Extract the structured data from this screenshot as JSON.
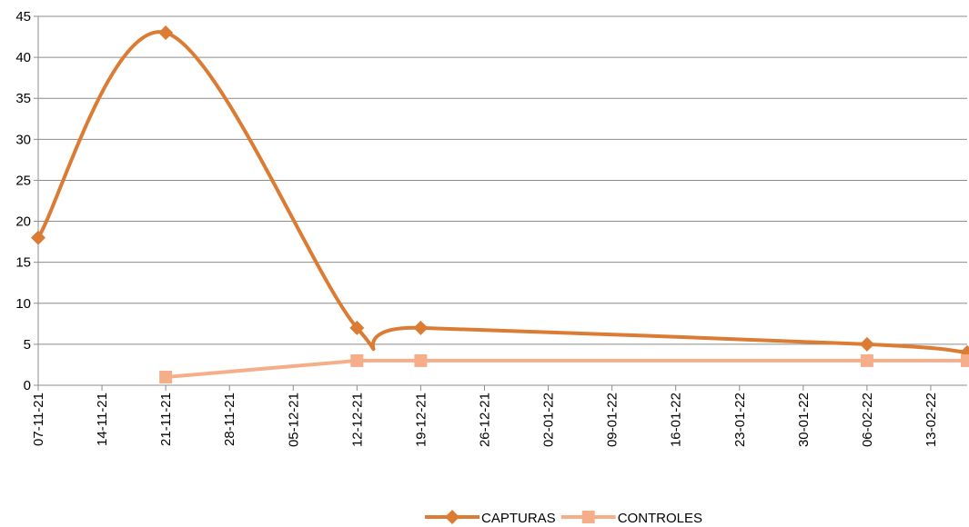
{
  "chart_data": {
    "type": "line",
    "x": [
      "07-11-21",
      "21-11-21",
      "12-12-21",
      "19-12-21",
      "06-02-22",
      "17-02-22"
    ],
    "series": [
      {
        "name": "CAPTURAS",
        "color": "#dc7b34",
        "marker": "diamond",
        "smooth": true,
        "values": [
          18,
          43,
          7,
          7,
          5,
          4
        ]
      },
      {
        "name": "CONTROLES",
        "color": "#f6ae8a",
        "marker": "square",
        "smooth": false,
        "values": [
          null,
          1,
          3,
          3,
          3,
          3
        ]
      }
    ],
    "xlim": [
      "07-11-21",
      "17-02-22"
    ],
    "xticks": [
      "07-11-21",
      "14-11-21",
      "21-11-21",
      "28-11-21",
      "05-12-21",
      "12-12-21",
      "19-12-21",
      "26-12-21",
      "02-01-22",
      "09-01-22",
      "16-01-22",
      "23-01-22",
      "30-01-22",
      "06-02-22",
      "13-02-22"
    ],
    "ylim": [
      0,
      45
    ],
    "yticks": [
      0,
      5,
      10,
      15,
      20,
      25,
      30,
      35,
      40,
      45
    ],
    "grid": true,
    "legend": "bottom"
  }
}
